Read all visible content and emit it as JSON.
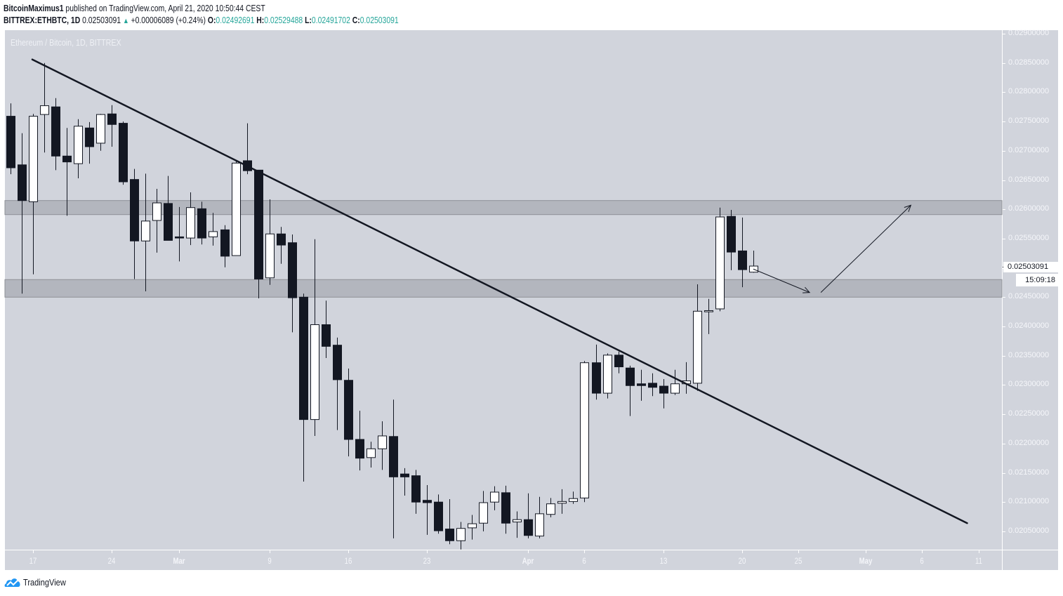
{
  "header": {
    "author": "BitcoinMaximus1",
    "published_text": " published on TradingView.com, April 21, 2020 10:50:44 CEST",
    "symbol": "BITTREX:ETHBTC, 1D",
    "last_price": "0.02503091",
    "change_icon": "triangle-up-icon",
    "change_glyph": "▲",
    "change": "+0.00006089 (+0.24%)",
    "open_label": "O:",
    "open": "0.02492691",
    "high_label": "H:",
    "high": "0.02529488",
    "low_label": "L:",
    "low": "0.02491702",
    "close_label": "C:",
    "close": "0.02503091"
  },
  "chart": {
    "title": "Ethereum / Bitcoin, 1D, BITTREX",
    "last_price_label": "0.02503091",
    "countdown": "15:09:18"
  },
  "colors": {
    "background": "#d1d4dc",
    "bear_candle": "#131722",
    "bull_candle": "#ffffff",
    "candle_outline": "#131722",
    "zone_fill": "#b3b6be",
    "zone_border": "#8e9097",
    "trendline": "#131722",
    "accent_teal": "#26a69a",
    "logo_blue": "#2196f3"
  },
  "logo": {
    "icon": "tradingview-logo-icon",
    "text": "TradingView"
  },
  "chart_data": {
    "type": "candlestick",
    "title": "Ethereum / Bitcoin, 1D, BITTREX",
    "symbol": "BITTREX:ETHBTC",
    "interval": "1D",
    "xlabel": "",
    "ylabel": "",
    "ylim": [
      0.0202,
      0.029
    ],
    "grid": false,
    "y_ticks": [
      "0.02900000",
      "0.02850000",
      "0.02800000",
      "0.02750000",
      "0.02700000",
      "0.02650000",
      "0.02600000",
      "0.02550000",
      "0.02500000",
      "0.02450000",
      "0.02400000",
      "0.02350000",
      "0.02300000",
      "0.02250000",
      "0.02200000",
      "0.02150000",
      "0.02100000",
      "0.02050000"
    ],
    "x_ticks": [
      {
        "text": "17",
        "i": 0
      },
      {
        "text": "24",
        "i": 7
      },
      {
        "text": "Mar",
        "i": 13
      },
      {
        "text": "9",
        "i": 21
      },
      {
        "text": "16",
        "i": 28
      },
      {
        "text": "23",
        "i": 35
      },
      {
        "text": "Apr",
        "i": 44
      },
      {
        "text": "6",
        "i": 49
      },
      {
        "text": "13",
        "i": 56
      },
      {
        "text": "20",
        "i": 63
      },
      {
        "text": "25",
        "i": 68
      },
      {
        "text": "May",
        "i": 74
      },
      {
        "text": "6",
        "i": 79
      },
      {
        "text": "11",
        "i": 84
      }
    ],
    "first_candle_index": -2,
    "candles": [
      {
        "date": "Feb 15",
        "o": 0.02759,
        "h": 0.02781,
        "l": 0.0266,
        "c": 0.02671
      },
      {
        "date": "Feb 16",
        "o": 0.02676,
        "h": 0.0273,
        "l": 0.02456,
        "c": 0.02615
      },
      {
        "date": "Feb 17",
        "o": 0.02613,
        "h": 0.02763,
        "l": 0.02489,
        "c": 0.02759
      },
      {
        "date": "Feb 18",
        "o": 0.02762,
        "h": 0.0285,
        "l": 0.02697,
        "c": 0.02777
      },
      {
        "date": "Feb 19",
        "o": 0.02775,
        "h": 0.0279,
        "l": 0.02667,
        "c": 0.02691
      },
      {
        "date": "Feb 20",
        "o": 0.02691,
        "h": 0.02739,
        "l": 0.02589,
        "c": 0.02681
      },
      {
        "date": "Feb 21",
        "o": 0.02678,
        "h": 0.02754,
        "l": 0.02653,
        "c": 0.02742
      },
      {
        "date": "Feb 22",
        "o": 0.02739,
        "h": 0.02749,
        "l": 0.02678,
        "c": 0.02707
      },
      {
        "date": "Feb 23",
        "o": 0.02713,
        "h": 0.02763,
        "l": 0.027,
        "c": 0.02762
      },
      {
        "date": "Feb 24",
        "o": 0.02763,
        "h": 0.02778,
        "l": 0.02707,
        "c": 0.02745
      },
      {
        "date": "Feb 25",
        "o": 0.02747,
        "h": 0.0275,
        "l": 0.02642,
        "c": 0.02647
      },
      {
        "date": "Feb 26",
        "o": 0.02651,
        "h": 0.02669,
        "l": 0.02481,
        "c": 0.02546
      },
      {
        "date": "Feb 27",
        "o": 0.02546,
        "h": 0.02661,
        "l": 0.0246,
        "c": 0.0258
      },
      {
        "date": "Feb 28",
        "o": 0.02581,
        "h": 0.02635,
        "l": 0.02526,
        "c": 0.02611
      },
      {
        "date": "Feb 29",
        "o": 0.0261,
        "h": 0.02657,
        "l": 0.02547,
        "c": 0.02547
      },
      {
        "date": "Mar 1",
        "o": 0.02553,
        "h": 0.02604,
        "l": 0.02511,
        "c": 0.02551
      },
      {
        "date": "Mar 2",
        "o": 0.02551,
        "h": 0.02629,
        "l": 0.02539,
        "c": 0.02603
      },
      {
        "date": "Mar 3",
        "o": 0.02601,
        "h": 0.02613,
        "l": 0.0254,
        "c": 0.02551
      },
      {
        "date": "Mar 4",
        "o": 0.02553,
        "h": 0.02594,
        "l": 0.02538,
        "c": 0.02562
      },
      {
        "date": "Mar 5",
        "o": 0.02565,
        "h": 0.02573,
        "l": 0.02501,
        "c": 0.0252
      },
      {
        "date": "Mar 6",
        "o": 0.02521,
        "h": 0.02682,
        "l": 0.02521,
        "c": 0.02679
      },
      {
        "date": "Mar 7",
        "o": 0.02683,
        "h": 0.02747,
        "l": 0.0266,
        "c": 0.02666
      },
      {
        "date": "Mar 8",
        "o": 0.02667,
        "h": 0.02667,
        "l": 0.02448,
        "c": 0.02481
      },
      {
        "date": "Mar 9",
        "o": 0.02483,
        "h": 0.02617,
        "l": 0.02471,
        "c": 0.02558
      },
      {
        "date": "Mar 10",
        "o": 0.02558,
        "h": 0.0257,
        "l": 0.02507,
        "c": 0.02539
      },
      {
        "date": "Mar 11",
        "o": 0.02543,
        "h": 0.02557,
        "l": 0.0239,
        "c": 0.02449
      },
      {
        "date": "Mar 12",
        "o": 0.0245,
        "h": 0.02456,
        "l": 0.02135,
        "c": 0.02241
      },
      {
        "date": "Mar 13",
        "o": 0.02241,
        "h": 0.02549,
        "l": 0.02213,
        "c": 0.02403
      },
      {
        "date": "Mar 14",
        "o": 0.02403,
        "h": 0.02444,
        "l": 0.02346,
        "c": 0.02366
      },
      {
        "date": "Mar 15",
        "o": 0.02368,
        "h": 0.02381,
        "l": 0.02223,
        "c": 0.02309
      },
      {
        "date": "Mar 16",
        "o": 0.02308,
        "h": 0.02328,
        "l": 0.02178,
        "c": 0.02207
      },
      {
        "date": "Mar 17",
        "o": 0.02207,
        "h": 0.02256,
        "l": 0.02154,
        "c": 0.02175
      },
      {
        "date": "Mar 18",
        "o": 0.02176,
        "h": 0.02203,
        "l": 0.02159,
        "c": 0.02191
      },
      {
        "date": "Mar 19",
        "o": 0.02191,
        "h": 0.02238,
        "l": 0.02155,
        "c": 0.02213
      },
      {
        "date": "Mar 20",
        "o": 0.02212,
        "h": 0.02275,
        "l": 0.02038,
        "c": 0.02143
      },
      {
        "date": "Mar 21",
        "o": 0.02148,
        "h": 0.02158,
        "l": 0.02111,
        "c": 0.02143
      },
      {
        "date": "Mar 22",
        "o": 0.02145,
        "h": 0.02155,
        "l": 0.0208,
        "c": 0.021
      },
      {
        "date": "Mar 23",
        "o": 0.02103,
        "h": 0.02129,
        "l": 0.02044,
        "c": 0.02099
      },
      {
        "date": "Mar 24",
        "o": 0.021,
        "h": 0.02113,
        "l": 0.02046,
        "c": 0.02051
      },
      {
        "date": "Mar 25",
        "o": 0.02054,
        "h": 0.02105,
        "l": 0.02028,
        "c": 0.02034
      },
      {
        "date": "Mar 26",
        "o": 0.02034,
        "h": 0.02066,
        "l": 0.02019,
        "c": 0.02055
      },
      {
        "date": "Mar 27",
        "o": 0.02056,
        "h": 0.02078,
        "l": 0.02036,
        "c": 0.02063
      },
      {
        "date": "Mar 28",
        "o": 0.02064,
        "h": 0.02119,
        "l": 0.0205,
        "c": 0.02099
      },
      {
        "date": "Mar 29",
        "o": 0.021,
        "h": 0.02127,
        "l": 0.02086,
        "c": 0.02117
      },
      {
        "date": "Mar 30",
        "o": 0.02116,
        "h": 0.02128,
        "l": 0.02046,
        "c": 0.02064
      },
      {
        "date": "Mar 31",
        "o": 0.02066,
        "h": 0.02084,
        "l": 0.02039,
        "c": 0.0207
      },
      {
        "date": "Apr 1",
        "o": 0.0207,
        "h": 0.02115,
        "l": 0.02038,
        "c": 0.02043
      },
      {
        "date": "Apr 2",
        "o": 0.02042,
        "h": 0.02109,
        "l": 0.02038,
        "c": 0.0208
      },
      {
        "date": "Apr 3",
        "o": 0.02079,
        "h": 0.02107,
        "l": 0.02074,
        "c": 0.02097
      },
      {
        "date": "Apr 4",
        "o": 0.02098,
        "h": 0.02122,
        "l": 0.0208,
        "c": 0.02101
      },
      {
        "date": "Apr 5",
        "o": 0.02101,
        "h": 0.02118,
        "l": 0.02097,
        "c": 0.02106
      },
      {
        "date": "Apr 6",
        "o": 0.02107,
        "h": 0.02341,
        "l": 0.021,
        "c": 0.02338
      },
      {
        "date": "Apr 7",
        "o": 0.02338,
        "h": 0.02369,
        "l": 0.02275,
        "c": 0.02286
      },
      {
        "date": "Apr 8",
        "o": 0.02286,
        "h": 0.02354,
        "l": 0.02277,
        "c": 0.02351
      },
      {
        "date": "Apr 9",
        "o": 0.02351,
        "h": 0.02357,
        "l": 0.0232,
        "c": 0.02331
      },
      {
        "date": "Apr 10",
        "o": 0.02329,
        "h": 0.02333,
        "l": 0.02247,
        "c": 0.02299
      },
      {
        "date": "Apr 11",
        "o": 0.02302,
        "h": 0.02326,
        "l": 0.02273,
        "c": 0.02299
      },
      {
        "date": "Apr 12",
        "o": 0.02303,
        "h": 0.0232,
        "l": 0.02281,
        "c": 0.02296
      },
      {
        "date": "Apr 13",
        "o": 0.02298,
        "h": 0.0231,
        "l": 0.0226,
        "c": 0.02286
      },
      {
        "date": "Apr 14",
        "o": 0.02286,
        "h": 0.02326,
        "l": 0.02283,
        "c": 0.02302
      },
      {
        "date": "Apr 15",
        "o": 0.02302,
        "h": 0.02339,
        "l": 0.02285,
        "c": 0.02307
      },
      {
        "date": "Apr 16",
        "o": 0.02303,
        "h": 0.02472,
        "l": 0.0229,
        "c": 0.02426
      },
      {
        "date": "Apr 17",
        "o": 0.02425,
        "h": 0.02447,
        "l": 0.02387,
        "c": 0.02427
      },
      {
        "date": "Apr 18",
        "o": 0.0243,
        "h": 0.02603,
        "l": 0.02426,
        "c": 0.02587
      },
      {
        "date": "Apr 19",
        "o": 0.02588,
        "h": 0.02599,
        "l": 0.02496,
        "c": 0.02527
      },
      {
        "date": "Apr 20",
        "o": 0.02529,
        "h": 0.02586,
        "l": 0.02467,
        "c": 0.02497
      },
      {
        "date": "Apr 21",
        "o": 0.02492691,
        "h": 0.02529488,
        "l": 0.02491702,
        "c": 0.02503091
      }
    ],
    "zones": [
      {
        "name": "resistance-zone",
        "top": 0.02615,
        "bottom": 0.02591
      },
      {
        "name": "support-zone",
        "top": 0.0248,
        "bottom": 0.0245
      }
    ],
    "trendline": {
      "from": {
        "i": 0,
        "p": 0.02856
      },
      "to": {
        "i": 83,
        "p": 0.02064
      }
    },
    "arrows": [
      {
        "name": "projection-arrow-down",
        "from": {
          "i": 64,
          "p": 0.02498
        },
        "to": {
          "i": 69,
          "p": 0.02458
        }
      },
      {
        "name": "projection-arrow-up",
        "from": {
          "i": 70,
          "p": 0.02458
        },
        "to": {
          "i": 78,
          "p": 0.02607
        }
      }
    ],
    "annotations": {
      "last_price": "0.02503091",
      "bar_countdown": "15:09:18"
    }
  }
}
